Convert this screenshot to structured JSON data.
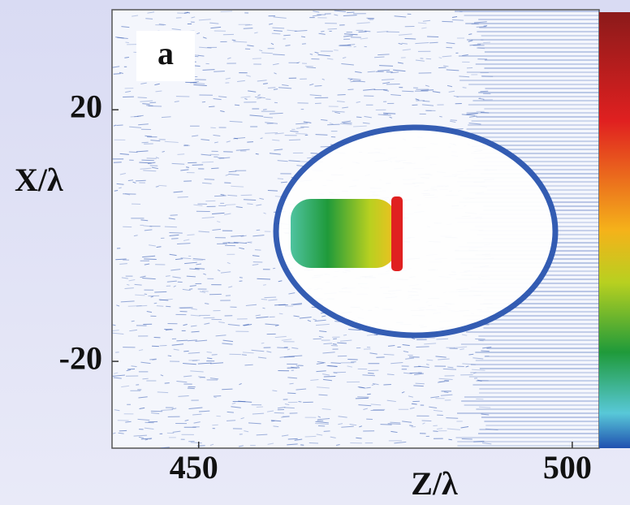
{
  "chart_data": {
    "type": "field-map",
    "panel_label": "a",
    "x_label": "Z/λ",
    "y_label": "X/λ",
    "xlim": [
      438.4,
      503.6
    ],
    "xticks": [
      450,
      500
    ],
    "ylim": [
      -33.8,
      35.9
    ],
    "yticks": [
      -20,
      20
    ]
  }
}
